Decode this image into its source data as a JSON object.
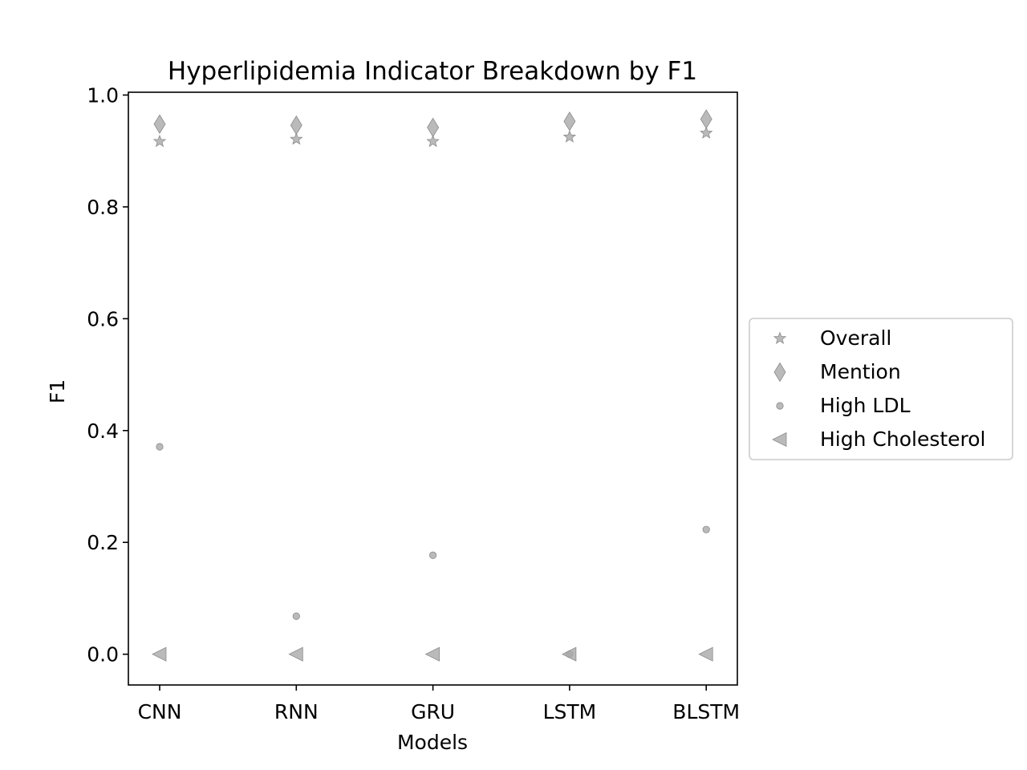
{
  "chart_data": {
    "type": "scatter",
    "title": "Hyperlipidemia Indicator Breakdown by F1",
    "xlabel": "Models",
    "ylabel": "F1",
    "categories": [
      "CNN",
      "RNN",
      "GRU",
      "LSTM",
      "BLSTM"
    ],
    "ylim": [
      -0.055,
      1.005
    ],
    "yticks": [
      "0.0",
      "0.2",
      "0.4",
      "0.6",
      "0.8",
      "1.0"
    ],
    "grid": false,
    "legend_position": "right",
    "marker_color": "#a9a9a9",
    "series": [
      {
        "name": "Overall",
        "marker": "star",
        "values": [
          0.917,
          0.921,
          0.917,
          0.925,
          0.932
        ]
      },
      {
        "name": "Mention",
        "marker": "diamond",
        "values": [
          0.948,
          0.946,
          0.942,
          0.953,
          0.957
        ]
      },
      {
        "name": "High LDL",
        "marker": "circle",
        "values": [
          0.371,
          0.068,
          0.177,
          0.0,
          0.223
        ]
      },
      {
        "name": "High Cholesterol",
        "marker": "triangle-left",
        "values": [
          0.0,
          0.0,
          0.0,
          0.0,
          0.0
        ]
      }
    ]
  }
}
